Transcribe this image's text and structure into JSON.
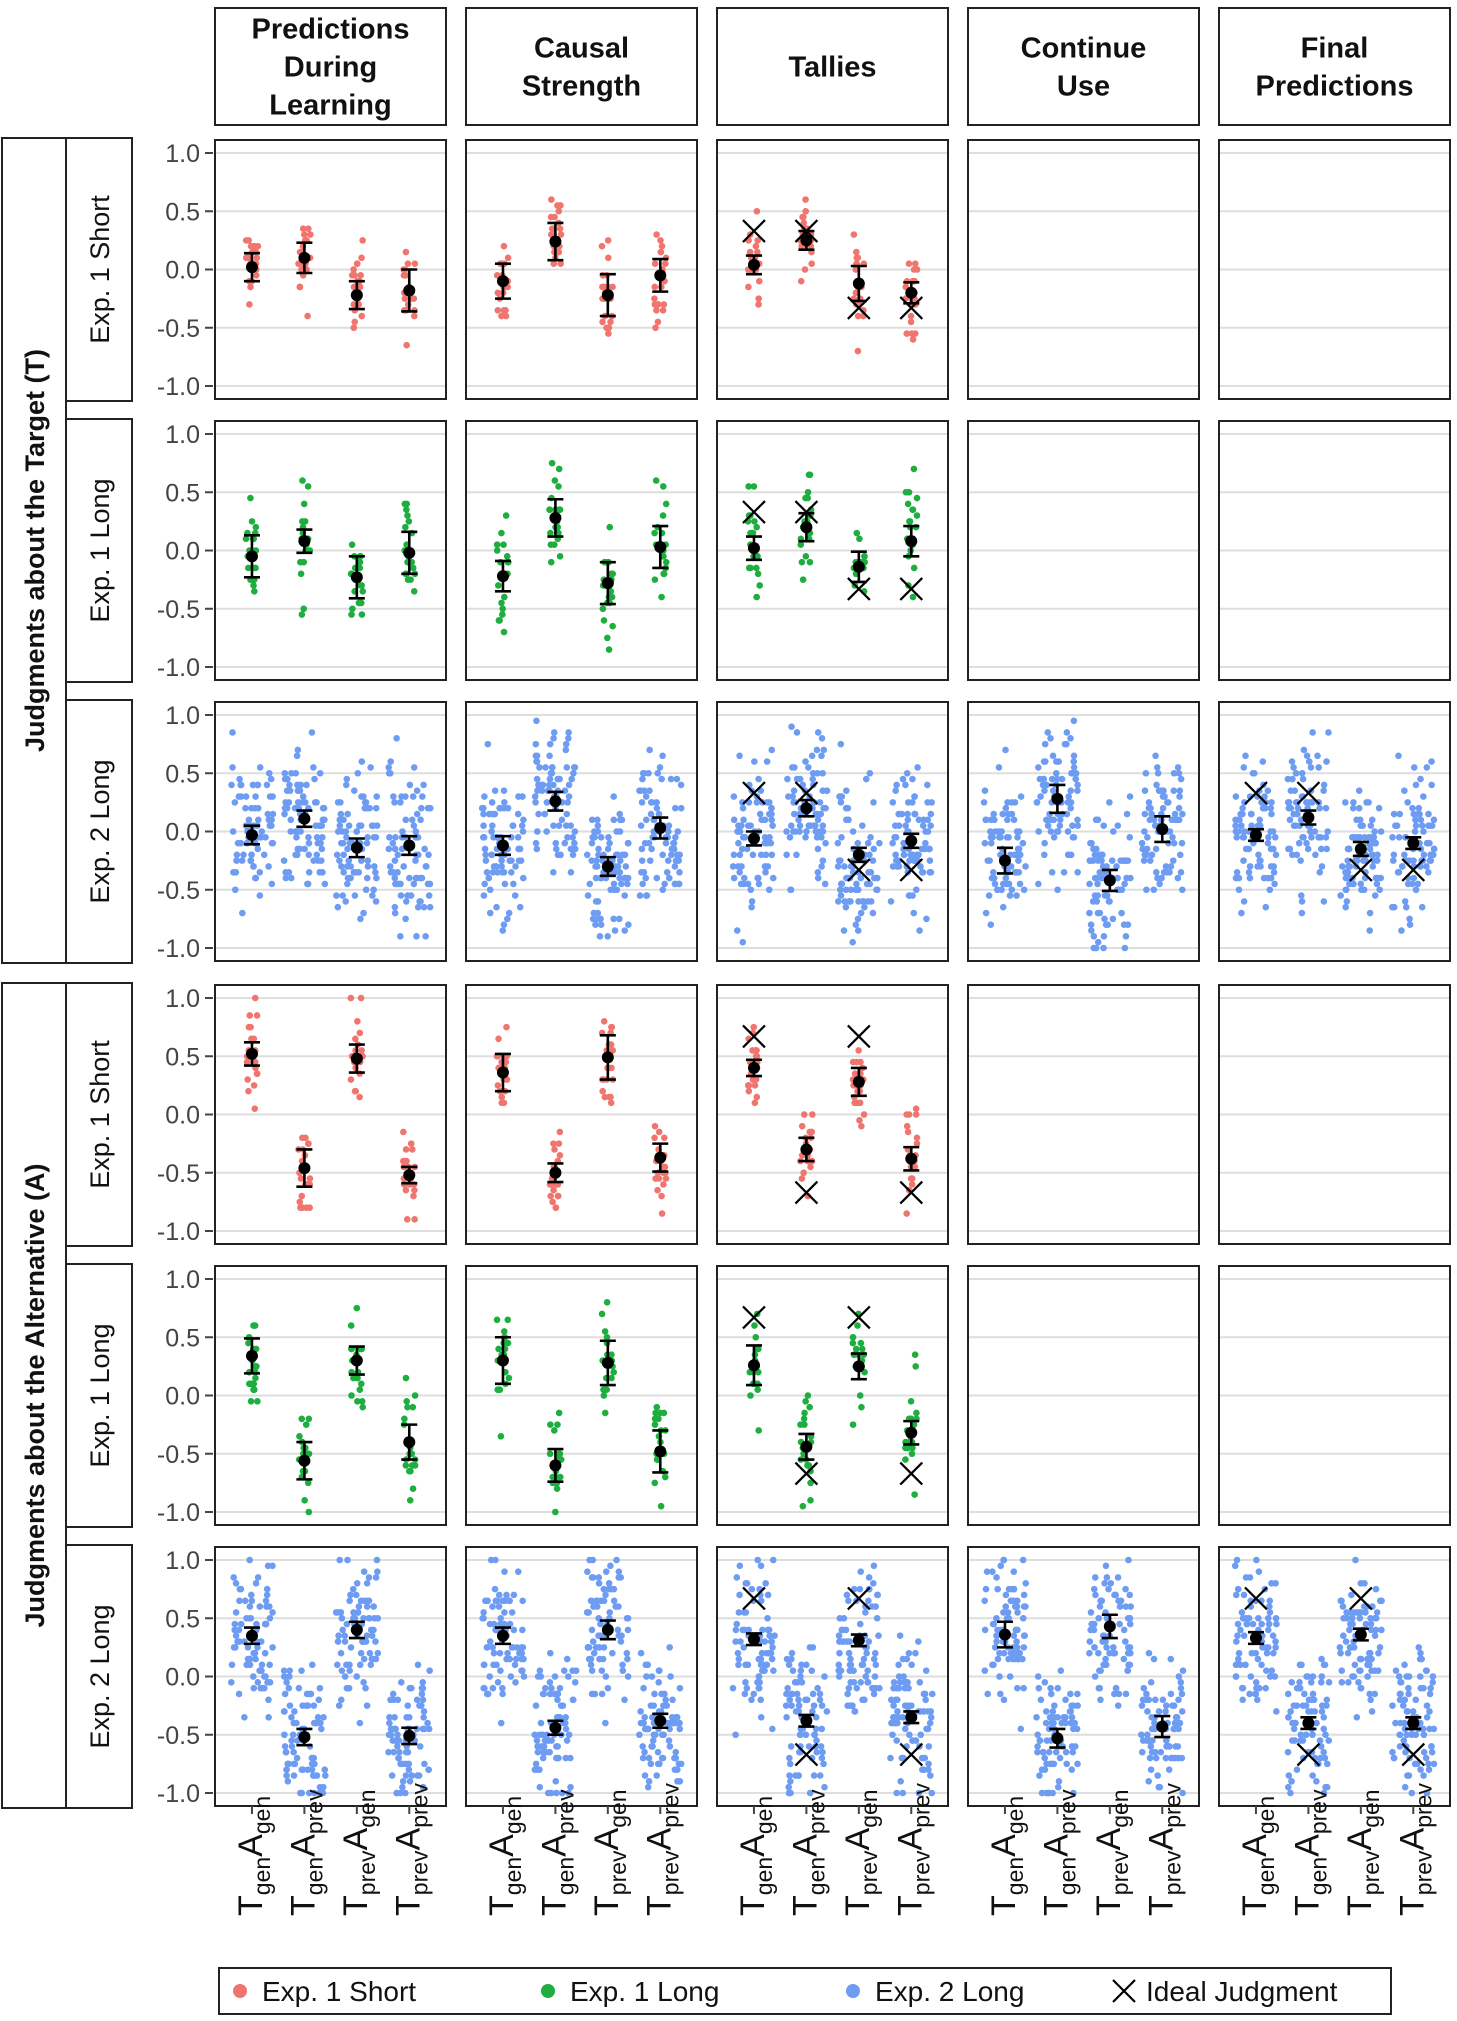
{
  "figure": {
    "columns": [
      "Predictions\nDuring\nLearning",
      "Causal\nStrength",
      "Tallies",
      "Continue\nUse",
      "Final\nPredictions"
    ],
    "groups": [
      "Judgments about the Target (T)",
      "Judgments about the Alternative (A)"
    ],
    "rows": [
      "Exp. 1 Short",
      "Exp. 1 Long",
      "Exp. 2 Long",
      "Exp. 1 Short",
      "Exp. 1 Long",
      "Exp. 2 Long"
    ],
    "y_ticks": [
      "1.0",
      "0.5",
      "0.0",
      "-0.5",
      "-1.0"
    ],
    "x_categories": [
      {
        "main1": "T",
        "sub1": "gen",
        "main2": "A",
        "sub2": "gen"
      },
      {
        "main1": "T",
        "sub1": "gen",
        "main2": "A",
        "sub2": "prev"
      },
      {
        "main1": "T",
        "sub1": "prev",
        "main2": "A",
        "sub2": "gen"
      },
      {
        "main1": "T",
        "sub1": "prev",
        "main2": "A",
        "sub2": "prev"
      }
    ],
    "legend": [
      {
        "label": "Exp. 1 Short",
        "kind": "dot",
        "color": "#f0756e"
      },
      {
        "label": "Exp. 1 Long",
        "kind": "dot",
        "color": "#1dae3f"
      },
      {
        "label": "Exp. 2 Long",
        "kind": "dot",
        "color": "#6e9cf2"
      },
      {
        "label": "Ideal Judgment",
        "kind": "cross",
        "color": "#000000"
      }
    ]
  },
  "chart_data": {
    "type": "scatter",
    "ylim": [
      -1.0,
      1.0
    ],
    "categories": [
      "TgenAgen",
      "TgenAprev",
      "TprevAgen",
      "TprevAprev"
    ],
    "series_colors": {
      "Exp. 1 Short": "#f0756e",
      "Exp. 1 Long": "#1dae3f",
      "Exp. 2 Long": "#6e9cf2"
    },
    "panels": [
      {
        "row": 0,
        "col": 0,
        "means": [
          0.02,
          0.1,
          -0.22,
          -0.18
        ],
        "ci": [
          0.12,
          0.13,
          0.12,
          0.18
        ],
        "ideal": null
      },
      {
        "row": 0,
        "col": 1,
        "means": [
          -0.1,
          0.24,
          -0.22,
          -0.05
        ],
        "ci": [
          0.15,
          0.16,
          0.18,
          0.14
        ],
        "ideal": null
      },
      {
        "row": 0,
        "col": 2,
        "means": [
          0.04,
          0.25,
          -0.12,
          -0.2
        ],
        "ci": [
          0.08,
          0.08,
          0.15,
          0.09
        ],
        "ideal": [
          0.33,
          0.33,
          -0.33,
          -0.33
        ]
      },
      {
        "row": 0,
        "col": 3,
        "means": null,
        "ci": null,
        "ideal": null
      },
      {
        "row": 0,
        "col": 4,
        "means": null,
        "ci": null,
        "ideal": null
      },
      {
        "row": 1,
        "col": 0,
        "means": [
          -0.05,
          0.08,
          -0.23,
          -0.02
        ],
        "ci": [
          0.18,
          0.1,
          0.18,
          0.18
        ],
        "ideal": null
      },
      {
        "row": 1,
        "col": 1,
        "means": [
          -0.22,
          0.28,
          -0.28,
          0.03
        ],
        "ci": [
          0.13,
          0.16,
          0.18,
          0.18
        ],
        "ideal": null
      },
      {
        "row": 1,
        "col": 2,
        "means": [
          0.02,
          0.2,
          -0.14,
          0.08
        ],
        "ci": [
          0.1,
          0.12,
          0.13,
          0.13
        ],
        "ideal": [
          0.33,
          0.33,
          -0.33,
          -0.33
        ]
      },
      {
        "row": 1,
        "col": 3,
        "means": null,
        "ci": null,
        "ideal": null
      },
      {
        "row": 1,
        "col": 4,
        "means": null,
        "ci": null,
        "ideal": null
      },
      {
        "row": 2,
        "col": 0,
        "means": [
          -0.03,
          0.11,
          -0.14,
          -0.12
        ],
        "ci": [
          0.08,
          0.07,
          0.08,
          0.08
        ],
        "ideal": null
      },
      {
        "row": 2,
        "col": 1,
        "means": [
          -0.12,
          0.26,
          -0.3,
          0.03
        ],
        "ci": [
          0.08,
          0.08,
          0.08,
          0.09
        ],
        "ideal": null
      },
      {
        "row": 2,
        "col": 2,
        "means": [
          -0.06,
          0.2,
          -0.2,
          -0.08
        ],
        "ci": [
          0.06,
          0.07,
          0.06,
          0.06
        ],
        "ideal": [
          0.33,
          0.33,
          -0.33,
          -0.33
        ]
      },
      {
        "row": 2,
        "col": 3,
        "means": [
          -0.25,
          0.28,
          -0.42,
          0.02
        ],
        "ci": [
          0.11,
          0.12,
          0.09,
          0.11
        ],
        "ideal": null
      },
      {
        "row": 2,
        "col": 4,
        "means": [
          -0.03,
          0.12,
          -0.15,
          -0.1
        ],
        "ci": [
          0.05,
          0.06,
          0.06,
          0.05
        ],
        "ideal": [
          0.33,
          0.33,
          -0.33,
          -0.33
        ]
      },
      {
        "row": 3,
        "col": 0,
        "means": [
          0.52,
          -0.46,
          0.48,
          -0.52
        ],
        "ci": [
          0.1,
          0.16,
          0.12,
          0.07
        ],
        "ideal": null
      },
      {
        "row": 3,
        "col": 1,
        "means": [
          0.36,
          -0.5,
          0.49,
          -0.37
        ],
        "ci": [
          0.16,
          0.08,
          0.19,
          0.12
        ],
        "ideal": null
      },
      {
        "row": 3,
        "col": 2,
        "means": [
          0.4,
          -0.3,
          0.28,
          -0.38
        ],
        "ci": [
          0.07,
          0.1,
          0.12,
          0.1
        ],
        "ideal": [
          0.67,
          -0.67,
          0.67,
          -0.67
        ]
      },
      {
        "row": 3,
        "col": 3,
        "means": null,
        "ci": null,
        "ideal": null
      },
      {
        "row": 3,
        "col": 4,
        "means": null,
        "ci": null,
        "ideal": null
      },
      {
        "row": 4,
        "col": 0,
        "means": [
          0.34,
          -0.56,
          0.3,
          -0.4
        ],
        "ci": [
          0.15,
          0.16,
          0.12,
          0.15
        ],
        "ideal": null
      },
      {
        "row": 4,
        "col": 1,
        "means": [
          0.3,
          -0.6,
          0.28,
          -0.48
        ],
        "ci": [
          0.2,
          0.14,
          0.19,
          0.18
        ],
        "ideal": null
      },
      {
        "row": 4,
        "col": 2,
        "means": [
          0.26,
          -0.44,
          0.25,
          -0.32
        ],
        "ci": [
          0.17,
          0.11,
          0.11,
          0.1
        ],
        "ideal": [
          0.67,
          -0.67,
          0.67,
          -0.67
        ]
      },
      {
        "row": 4,
        "col": 3,
        "means": null,
        "ci": null,
        "ideal": null
      },
      {
        "row": 4,
        "col": 4,
        "means": null,
        "ci": null,
        "ideal": null
      },
      {
        "row": 5,
        "col": 0,
        "means": [
          0.35,
          -0.52,
          0.4,
          -0.51
        ],
        "ci": [
          0.07,
          0.07,
          0.07,
          0.07
        ],
        "ideal": null
      },
      {
        "row": 5,
        "col": 1,
        "means": [
          0.35,
          -0.44,
          0.4,
          -0.38
        ],
        "ci": [
          0.07,
          0.06,
          0.08,
          0.06
        ],
        "ideal": null
      },
      {
        "row": 5,
        "col": 2,
        "means": [
          0.32,
          -0.38,
          0.31,
          -0.35
        ],
        "ci": [
          0.05,
          0.05,
          0.05,
          0.05
        ],
        "ideal": [
          0.67,
          -0.67,
          0.67,
          -0.67
        ]
      },
      {
        "row": 5,
        "col": 3,
        "means": [
          0.36,
          -0.53,
          0.43,
          -0.43
        ],
        "ci": [
          0.11,
          0.08,
          0.1,
          0.09
        ],
        "ideal": null
      },
      {
        "row": 5,
        "col": 4,
        "means": [
          0.33,
          -0.4,
          0.36,
          -0.4
        ],
        "ci": [
          0.05,
          0.05,
          0.05,
          0.05
        ],
        "ideal": [
          0.67,
          -0.67,
          0.67,
          -0.67
        ]
      }
    ]
  }
}
